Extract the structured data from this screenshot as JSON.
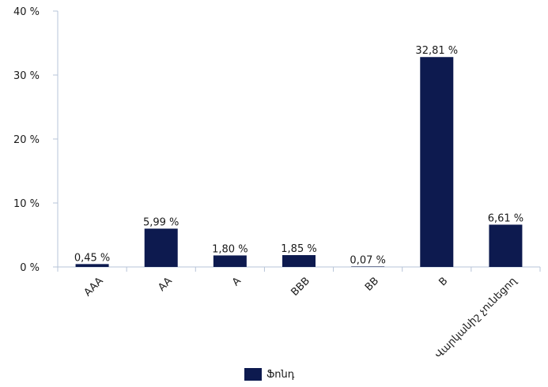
{
  "chart_data": {
    "type": "bar",
    "categories": [
      "AAA",
      "AA",
      "A",
      "BBB",
      "BB",
      "B",
      "Վարկանիշ չունեցող"
    ],
    "series": [
      {
        "name": "Ֆոնդ",
        "values": [
          0.45,
          5.99,
          1.8,
          1.85,
          0.07,
          32.81,
          6.61
        ],
        "labels": [
          "0,45 %",
          "5,99 %",
          "1,80 %",
          "1,85 %",
          "0,07 %",
          "32,81 %",
          "6,61 %"
        ],
        "color": "#0d1a4f"
      }
    ],
    "ylim": [
      0,
      40
    ],
    "yticks": [
      0,
      10,
      20,
      30,
      40
    ],
    "ytick_labels": [
      "0 %",
      "10 %",
      "20 %",
      "30 %",
      "40 %"
    ],
    "xlabel": "",
    "ylabel": "",
    "title": "",
    "grid": false,
    "legend_position": "bottom"
  }
}
